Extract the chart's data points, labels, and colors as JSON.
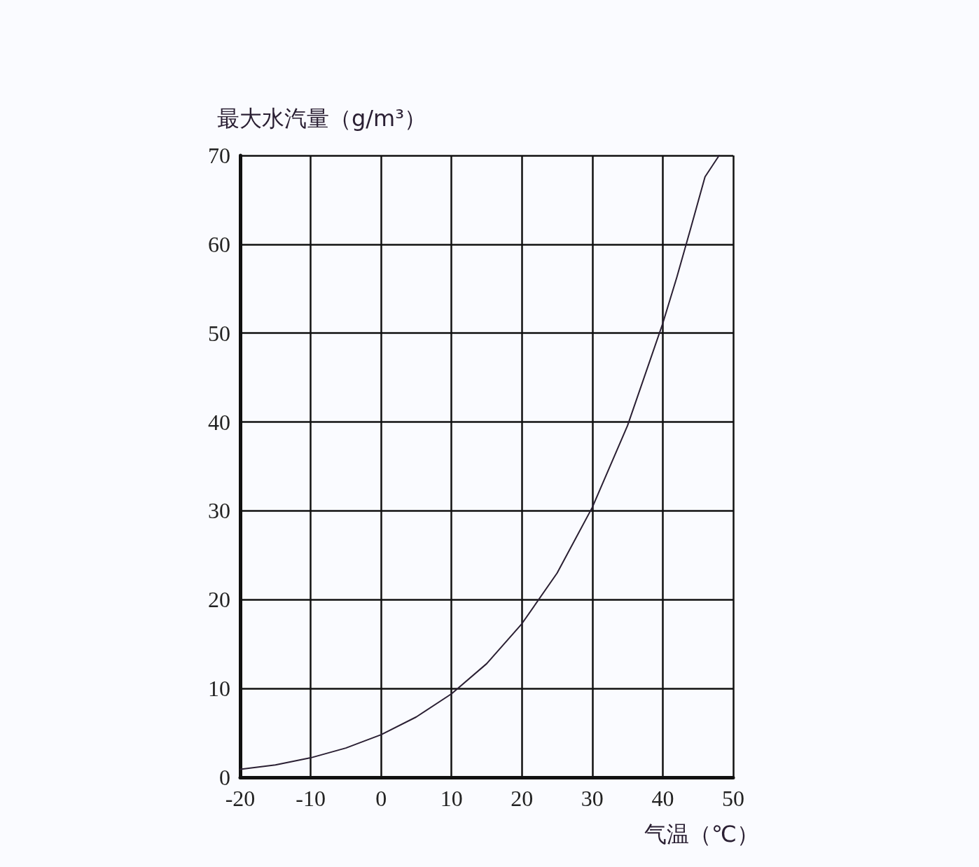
{
  "chart_data": {
    "type": "line",
    "xlabel": "气温（℃）",
    "ylabel": "最大水汽量（g/m³）",
    "x": [
      -20,
      -15,
      -10,
      -5,
      0,
      5,
      10,
      15,
      20,
      25,
      30,
      35,
      40,
      42,
      44,
      46,
      48
    ],
    "series": [
      {
        "color": "#2a1f33",
        "values": [
          0.9,
          1.4,
          2.2,
          3.3,
          4.8,
          6.8,
          9.4,
          12.8,
          17.3,
          23.0,
          30.4,
          39.6,
          51.1,
          56.3,
          61.9,
          67.6,
          70
        ]
      }
    ],
    "xlim": [
      -20,
      50
    ],
    "xticks": [
      -20,
      -10,
      0,
      10,
      20,
      30,
      40,
      50
    ],
    "ylim": [
      0,
      70
    ],
    "yticks": [
      0,
      10,
      20,
      30,
      40,
      50,
      60,
      70
    ],
    "grid": true,
    "marker": "none",
    "line_style": "solid"
  }
}
